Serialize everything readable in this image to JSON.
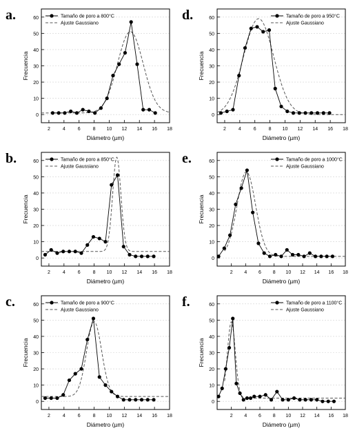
{
  "figure": {
    "background": "#ffffff",
    "line_color": "#000000",
    "fit_color": "#555555",
    "grid_color": "#cfcfcf"
  },
  "chart_data": [
    {
      "panel": "a.",
      "type": "line",
      "xlabel": "Diámetro (µm)",
      "ylabel": "Frecuencia",
      "xlim": [
        1,
        18
      ],
      "ylim": [
        -5,
        65
      ],
      "xticks": [
        2,
        4,
        6,
        8,
        10,
        12,
        14,
        16,
        18
      ],
      "yticks": [
        0,
        10,
        20,
        30,
        40,
        50,
        60
      ],
      "legend": "top-left",
      "grid": "horizontal",
      "series": [
        {
          "name": "Tamaño de poro a 800°C",
          "style": "line-markers",
          "x": [
            2.5,
            3.3,
            4.1,
            4.9,
            5.7,
            6.5,
            7.3,
            8.1,
            8.9,
            9.7,
            10.5,
            11.3,
            12.1,
            12.9,
            13.7,
            14.5,
            15.3,
            16.1
          ],
          "y": [
            1,
            1,
            1,
            2,
            1,
            3,
            2,
            1,
            4,
            10,
            24,
            31,
            38,
            57,
            31,
            3,
            3,
            1
          ]
        },
        {
          "name": "Ajuste Gaussiano",
          "style": "dashed",
          "fit": "gaussian",
          "baseline": 1,
          "amplitude": 50,
          "center": 12.8,
          "sigma": 1.7
        }
      ]
    },
    {
      "panel": "d.",
      "type": "line",
      "xlabel": "Diámetro (µm)",
      "ylabel": "Frecuencia",
      "xlim": [
        1,
        18
      ],
      "ylim": [
        -5,
        65
      ],
      "xticks": [
        2,
        4,
        6,
        8,
        10,
        12,
        14,
        16,
        18
      ],
      "yticks": [
        0,
        10,
        20,
        30,
        40,
        50,
        60
      ],
      "legend": "top-right",
      "grid": "horizontal",
      "series": [
        {
          "name": "Tamaño de poro a 950°C",
          "style": "line-markers",
          "x": [
            1.5,
            2.3,
            3.1,
            3.9,
            4.7,
            5.5,
            6.3,
            7.1,
            7.9,
            8.7,
            9.5,
            10.3,
            11.1,
            11.9,
            12.7,
            13.5,
            14.3,
            15.1,
            15.9
          ],
          "y": [
            1,
            2,
            3,
            24,
            41,
            53,
            54,
            51,
            52,
            16,
            5,
            2,
            1,
            1,
            1,
            1,
            1,
            1,
            1
          ]
        },
        {
          "name": "Ajuste Gaussiano",
          "style": "dashed",
          "fit": "gaussian",
          "baseline": 0,
          "amplitude": 59,
          "center": 6.5,
          "sigma": 2.0
        }
      ]
    },
    {
      "panel": "b.",
      "type": "line",
      "xlabel": "Diámetro (µm)",
      "ylabel": "Frecuencia",
      "xlim": [
        1,
        18
      ],
      "ylim": [
        -5,
        65
      ],
      "xticks": [
        2,
        4,
        6,
        8,
        10,
        12,
        14,
        16,
        18
      ],
      "yticks": [
        0,
        10,
        20,
        30,
        40,
        50,
        60
      ],
      "legend": "top-left",
      "grid": "horizontal",
      "series": [
        {
          "name": "Tamaño de poro a 850°C",
          "style": "line-markers",
          "x": [
            1.5,
            2.3,
            3.1,
            3.9,
            4.7,
            5.5,
            6.3,
            7.1,
            7.9,
            8.7,
            9.5,
            10.3,
            11.1,
            11.9,
            12.7,
            13.5,
            14.3,
            15.1,
            15.9
          ],
          "y": [
            2,
            5,
            3,
            4,
            4,
            4,
            3,
            8,
            13,
            12,
            10,
            45,
            51,
            7,
            2,
            1,
            1,
            1,
            1
          ]
        },
        {
          "name": "Ajuste Gaussiano",
          "style": "dashed",
          "fit": "gaussian",
          "baseline": 4,
          "amplitude": 58,
          "center": 11.0,
          "sigma": 0.55
        }
      ]
    },
    {
      "panel": "e.",
      "type": "line",
      "xlabel": "Diámetro (µm)",
      "ylabel": "Frecuencia",
      "xlim": [
        0,
        18
      ],
      "ylim": [
        -5,
        65
      ],
      "xticks": [
        2,
        4,
        6,
        8,
        10,
        12,
        14,
        16,
        18
      ],
      "yticks": [
        0,
        10,
        20,
        30,
        40,
        50,
        60
      ],
      "legend": "top-right",
      "grid": "horizontal",
      "series": [
        {
          "name": "Tamaño de poro a 1000°C",
          "style": "line-markers",
          "x": [
            0.2,
            1.0,
            1.8,
            2.6,
            3.4,
            4.2,
            5.0,
            5.8,
            6.6,
            7.4,
            8.2,
            9.0,
            9.8,
            10.6,
            11.4,
            12.2,
            13.0,
            13.8,
            14.6,
            15.4,
            16.2
          ],
          "y": [
            1,
            6,
            14,
            33,
            43,
            54,
            28,
            9,
            3,
            1,
            2,
            1,
            5,
            2,
            2,
            1,
            3,
            1,
            1,
            1,
            1
          ]
        },
        {
          "name": "Ajuste Gaussiano",
          "style": "dashed",
          "fit": "gaussian",
          "baseline": 1,
          "amplitude": 52,
          "center": 4.1,
          "sigma": 1.3
        }
      ]
    },
    {
      "panel": "c.",
      "type": "line",
      "xlabel": "Diámetro (µm)",
      "ylabel": "Frecuencia",
      "xlim": [
        1,
        18
      ],
      "ylim": [
        -5,
        65
      ],
      "xticks": [
        2,
        4,
        6,
        8,
        10,
        12,
        14,
        16,
        18
      ],
      "yticks": [
        0,
        10,
        20,
        30,
        40,
        50,
        60
      ],
      "legend": "top-left",
      "grid": "horizontal",
      "series": [
        {
          "name": "Tamaño de poro a 900°C",
          "style": "line-markers",
          "x": [
            1.5,
            2.3,
            3.1,
            3.9,
            4.7,
            5.5,
            6.3,
            7.1,
            7.9,
            8.7,
            9.5,
            10.3,
            11.1,
            11.9,
            12.7,
            13.5,
            14.3,
            15.1,
            15.9
          ],
          "y": [
            2,
            2,
            2,
            4,
            13,
            17,
            20,
            38,
            51,
            15,
            10,
            6,
            3,
            1,
            1,
            1,
            1,
            1,
            1
          ]
        },
        {
          "name": "Ajuste Gaussiano",
          "style": "dashed",
          "fit": "gaussian",
          "baseline": 3,
          "amplitude": 46,
          "center": 8.0,
          "sigma": 1.0
        }
      ]
    },
    {
      "panel": "f.",
      "type": "line",
      "xlabel": "Diámetro (µm)",
      "ylabel": "Frecuencia",
      "xlim": [
        0,
        18
      ],
      "ylim": [
        -5,
        65
      ],
      "xticks": [
        2,
        4,
        6,
        8,
        10,
        12,
        14,
        16,
        18
      ],
      "yticks": [
        0,
        10,
        20,
        30,
        40,
        50,
        60
      ],
      "legend": "top-right",
      "grid": "horizontal",
      "series": [
        {
          "name": "Tamaño de poro a 1100°C",
          "style": "line-markers",
          "x": [
            0.2,
            0.7,
            1.2,
            1.7,
            2.2,
            2.7,
            3.2,
            3.7,
            4.2,
            4.7,
            5.2,
            6.0,
            6.8,
            7.6,
            8.4,
            9.2,
            10.0,
            10.8,
            11.6,
            12.4,
            13.2,
            14.0,
            14.8,
            15.6,
            16.4
          ],
          "y": [
            3,
            8,
            20,
            33,
            51,
            11,
            5,
            1,
            2,
            2,
            3,
            3,
            4,
            1,
            6,
            1,
            1,
            2,
            1,
            1,
            1,
            1,
            0,
            0,
            0
          ]
        },
        {
          "name": "Ajuste Gaussiano",
          "style": "dashed",
          "fit": "gaussian",
          "baseline": 2,
          "amplitude": 47,
          "center": 2.0,
          "sigma": 0.55
        }
      ]
    }
  ]
}
